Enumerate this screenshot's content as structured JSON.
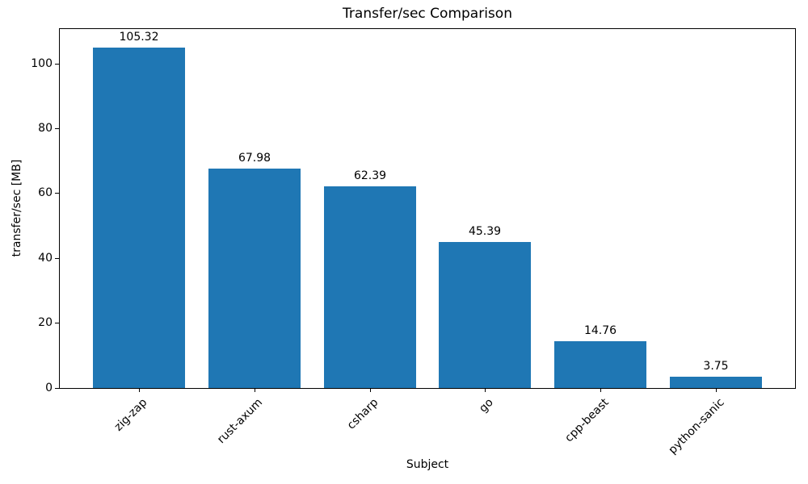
{
  "chart_data": {
    "type": "bar",
    "title": "Transfer/sec Comparison",
    "xlabel": "Subject",
    "ylabel": "transfer/sec [MB]",
    "categories": [
      "zig-zap",
      "rust-axum",
      "csharp",
      "go",
      "cpp-beast",
      "python-sanic"
    ],
    "values": [
      105.32,
      67.98,
      62.39,
      45.39,
      14.76,
      3.75
    ],
    "value_labels": [
      "105.32",
      "67.98",
      "62.39",
      "45.39",
      "14.76",
      "3.75"
    ],
    "yticks": [
      0,
      20,
      40,
      60,
      80,
      100
    ],
    "ytick_labels": [
      "0",
      "20",
      "40",
      "60",
      "80",
      "100"
    ],
    "ylim": [
      0,
      111.2
    ],
    "bar_color": "#1f77b4",
    "text_color": "#000000",
    "grid": false,
    "legend": null,
    "x_tick_rotation_deg": 45
  }
}
